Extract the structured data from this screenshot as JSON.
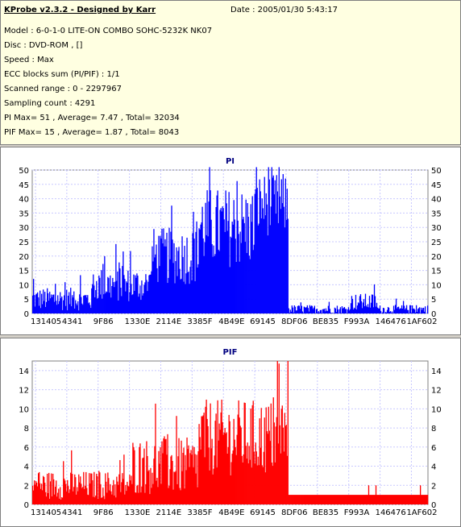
{
  "header": {
    "title": "KProbe v2.3.2 - Designed by Karr",
    "date": "Date : 2005/01/30 5:43:17",
    "lines": [
      "Model : 6-0-1-0 LITE-ON COMBO SOHC-5232K NK07",
      "Disc : DVD-ROM ,  []",
      "Speed : Max",
      "ECC blocks sum (PI/PIF) : 1/1",
      "Scanned range : 0 - 2297967",
      "Sampling count : 4291",
      "PI Max= 51 , Average= 7.47 , Total= 32034",
      "PIF Max= 15 , Average= 1.87 , Total= 8043"
    ]
  },
  "chart_data": [
    {
      "type": "bar",
      "title": "PI",
      "color": "#0000ff",
      "ylim": [
        0,
        50
      ],
      "yticks": [
        0,
        5,
        10,
        15,
        20,
        25,
        30,
        35,
        40,
        45,
        50
      ],
      "xticks": [
        "131405",
        "4341",
        "9F86",
        "1330E",
        "2114E",
        "3385F",
        "4B49E",
        "69145",
        "8DF06",
        "BE835",
        "F993A",
        "146476",
        "1AF602"
      ],
      "grid": true,
      "segments": [
        {
          "from": 0.0,
          "to": 0.15,
          "base": 5,
          "spread": 4
        },
        {
          "from": 0.15,
          "to": 0.3,
          "base": 10,
          "spread": 6
        },
        {
          "from": 0.3,
          "to": 0.42,
          "base": 20,
          "spread": 10
        },
        {
          "from": 0.42,
          "to": 0.56,
          "base": 30,
          "spread": 14
        },
        {
          "from": 0.56,
          "to": 0.645,
          "base": 38,
          "spread": 11
        },
        {
          "from": 0.645,
          "to": 0.8,
          "base": 1.5,
          "spread": 1.5
        },
        {
          "from": 0.8,
          "to": 0.87,
          "base": 4,
          "spread": 3
        },
        {
          "from": 0.87,
          "to": 1.0,
          "base": 1.5,
          "spread": 1.5
        }
      ],
      "max": 51
    },
    {
      "type": "bar",
      "title": "PIF",
      "color": "#ff0000",
      "ylim": [
        0,
        15
      ],
      "yticks": [
        0,
        2,
        4,
        6,
        8,
        10,
        12,
        14
      ],
      "xticks": [
        "131405",
        "4341",
        "9F86",
        "1330E",
        "2114E",
        "3385F",
        "4B49E",
        "69145",
        "8DF06",
        "BE835",
        "F993A",
        "146476",
        "1AF602"
      ],
      "grid": true,
      "segments": [
        {
          "from": 0.0,
          "to": 0.25,
          "base": 2,
          "spread": 1.5
        },
        {
          "from": 0.25,
          "to": 0.42,
          "base": 4,
          "spread": 3
        },
        {
          "from": 0.42,
          "to": 0.645,
          "base": 7,
          "spread": 4
        },
        {
          "from": 0.645,
          "to": 1.0,
          "base": 1,
          "spread": 0
        }
      ],
      "max": 15
    }
  ]
}
